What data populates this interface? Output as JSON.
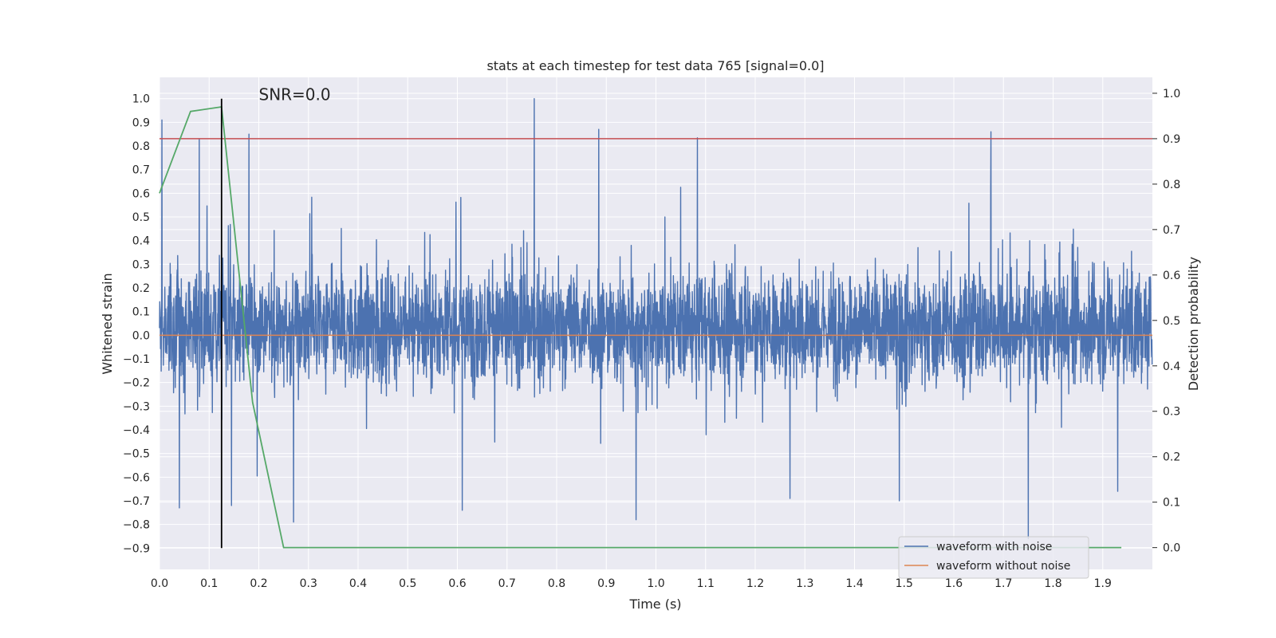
{
  "chart_data": {
    "type": "line",
    "title": "stats at each timestep for test data 765 [signal=0.0]",
    "xlabel": "Time (s)",
    "ylabel": "Whitened strain",
    "y2label": "Detection probability",
    "xlim": [
      0.0,
      2.0
    ],
    "ylim": [
      -0.99,
      1.09
    ],
    "y2lim": [
      -0.048,
      1.035
    ],
    "grid": true,
    "x_ticks": [
      "0.0",
      "0.1",
      "0.2",
      "0.3",
      "0.4",
      "0.5",
      "0.6",
      "0.7",
      "0.8",
      "0.9",
      "1.0",
      "1.1",
      "1.2",
      "1.3",
      "1.4",
      "1.5",
      "1.6",
      "1.7",
      "1.8",
      "1.9"
    ],
    "y_ticks": [
      "1.0",
      "0.9",
      "0.8",
      "0.7",
      "0.6",
      "0.5",
      "0.4",
      "0.3",
      "0.2",
      "0.1",
      "0.0",
      "−0.1",
      "−0.2",
      "−0.3",
      "−0.4",
      "−0.5",
      "−0.6",
      "−0.7",
      "−0.8",
      "−0.9"
    ],
    "y2_ticks": [
      "1.0",
      "0.9",
      "0.8",
      "0.7",
      "0.6",
      "0.5",
      "0.4",
      "0.3",
      "0.2",
      "0.1",
      "0.0"
    ],
    "annotation": {
      "text": "SNR=0.0",
      "x": 0.2,
      "y": 1.0
    },
    "colors": {
      "noisy": "#4c72b0",
      "clean": "#dd8452",
      "prob": "#55a868",
      "threshold": "#c44e52",
      "marker": "#000000",
      "plot_bg": "#eaeaf2",
      "grid": "#ffffff"
    },
    "series": [
      {
        "name": "waveform with noise",
        "axis": "left",
        "note": "dense whitened-noise trace sampled across 0-2 s; amplitude mostly within ±0.6, peaks near 1.0 and -0.9",
        "sample_rate": 2048,
        "duration": 2.0,
        "spikes": [
          {
            "t": 0.005,
            "v": 0.91
          },
          {
            "t": 0.08,
            "v": 0.83
          },
          {
            "t": 0.18,
            "v": 0.85
          },
          {
            "t": 0.755,
            "v": 1.0
          },
          {
            "t": 0.885,
            "v": 0.87
          },
          {
            "t": 1.675,
            "v": 0.86
          },
          {
            "t": 1.75,
            "v": -0.86
          },
          {
            "t": 0.96,
            "v": -0.78
          },
          {
            "t": 0.27,
            "v": -0.79
          },
          {
            "t": 0.04,
            "v": -0.73
          },
          {
            "t": 0.145,
            "v": -0.72
          },
          {
            "t": 1.49,
            "v": -0.7
          },
          {
            "t": 1.27,
            "v": -0.69
          },
          {
            "t": 0.61,
            "v": -0.74
          },
          {
            "t": 1.93,
            "v": -0.66
          }
        ]
      },
      {
        "name": "waveform without noise",
        "axis": "left",
        "x": [
          0.0,
          2.0
        ],
        "y": [
          0.0,
          0.0
        ]
      },
      {
        "name": "detection probability",
        "axis": "right",
        "x": [
          0.0,
          0.0625,
          0.125,
          0.1875,
          0.25,
          0.3125,
          0.5,
          1.0,
          1.5,
          1.9375
        ],
        "y": [
          0.78,
          0.96,
          0.97,
          0.32,
          0.0,
          0.0,
          0.0,
          0.0,
          0.0,
          0.0
        ]
      }
    ],
    "threshold": {
      "axis": "right",
      "y": 0.9
    },
    "marker_line": {
      "x": 0.125,
      "y_from": -0.9,
      "y_to": 1.0
    },
    "legend": {
      "placement": "lower-right",
      "entries": [
        "waveform with noise",
        "waveform without noise"
      ]
    }
  }
}
